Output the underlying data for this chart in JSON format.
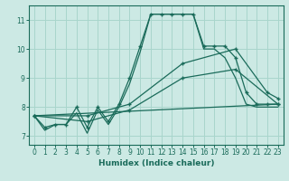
{
  "xlabel": "Humidex (Indice chaleur)",
  "ylabel": "",
  "xlim": [
    -0.5,
    23.5
  ],
  "ylim": [
    6.7,
    11.5
  ],
  "xticks": [
    0,
    1,
    2,
    3,
    4,
    5,
    6,
    7,
    8,
    9,
    10,
    11,
    12,
    13,
    14,
    15,
    16,
    17,
    18,
    19,
    20,
    21,
    22,
    23
  ],
  "yticks": [
    7,
    8,
    9,
    10,
    11
  ],
  "background_color": "#cce9e4",
  "grid_color": "#a8d5cc",
  "line_color": "#1a6b5a",
  "line1_x": [
    0,
    1,
    2,
    3,
    4,
    5,
    6,
    7,
    8,
    9,
    10,
    11,
    12,
    13,
    14,
    15,
    16,
    17,
    18,
    19,
    20,
    21,
    22,
    23
  ],
  "line1_y": [
    7.7,
    7.3,
    7.4,
    7.4,
    8.0,
    7.3,
    8.0,
    7.5,
    8.1,
    9.0,
    10.1,
    11.2,
    11.2,
    11.2,
    11.2,
    11.2,
    10.1,
    10.1,
    10.1,
    9.7,
    8.5,
    8.1,
    8.1,
    8.1
  ],
  "line2_x": [
    0,
    1,
    2,
    3,
    4,
    5,
    6,
    7,
    8,
    9,
    10,
    11,
    12,
    13,
    14,
    15,
    16,
    17,
    18,
    19,
    20,
    21,
    22,
    23
  ],
  "line2_y": [
    7.7,
    7.2,
    7.4,
    7.4,
    7.8,
    7.1,
    7.9,
    7.4,
    8.0,
    8.8,
    9.9,
    11.2,
    11.2,
    11.2,
    11.2,
    11.2,
    10.0,
    10.0,
    9.7,
    9.0,
    8.1,
    8.0,
    8.0,
    8.0
  ],
  "line3_x": [
    0,
    5,
    9,
    14,
    19,
    22,
    23
  ],
  "line3_y": [
    7.7,
    7.7,
    8.1,
    9.5,
    10.0,
    8.5,
    8.3
  ],
  "line4_x": [
    0,
    5,
    9,
    14,
    19,
    23
  ],
  "line4_y": [
    7.7,
    7.5,
    7.9,
    9.0,
    9.3,
    8.1
  ],
  "line5_x": [
    0,
    23
  ],
  "line5_y": [
    7.7,
    8.1
  ]
}
